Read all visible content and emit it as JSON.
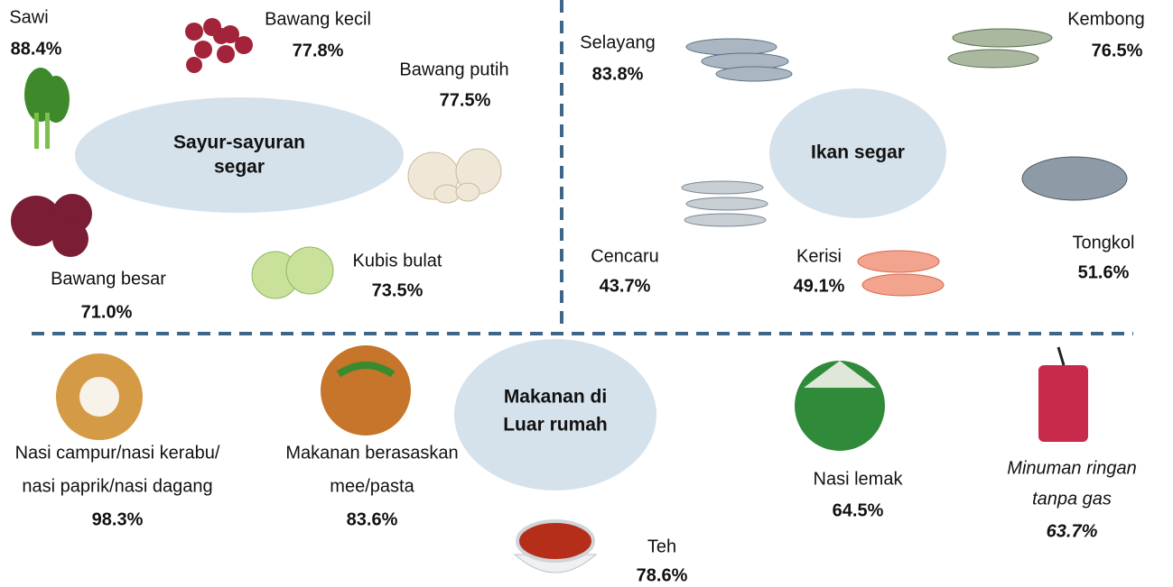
{
  "sections": [
    {
      "title": [
        "Sayur-sayuran",
        "segar"
      ],
      "items": [
        {
          "label": [
            "Sawi"
          ],
          "value": "88.4%"
        },
        {
          "label": [
            "Bawang kecil"
          ],
          "value": "77.8%"
        },
        {
          "label": [
            "Bawang putih"
          ],
          "value": "77.5%"
        },
        {
          "label": [
            "Bawang besar"
          ],
          "value": "71.0%"
        },
        {
          "label": [
            "Kubis bulat"
          ],
          "value": "73.5%"
        }
      ]
    },
    {
      "title": [
        "Ikan segar"
      ],
      "items": [
        {
          "label": [
            "Selayang"
          ],
          "value": "83.8%"
        },
        {
          "label": [
            "Kembong"
          ],
          "value": "76.5%"
        },
        {
          "label": [
            "Cencaru"
          ],
          "value": "43.7%"
        },
        {
          "label": [
            "Kerisi"
          ],
          "value": "49.1%"
        },
        {
          "label": [
            "Tongkol"
          ],
          "value": "51.6%"
        }
      ]
    },
    {
      "title": [
        "Makanan di",
        "Luar rumah"
      ],
      "items": [
        {
          "label": [
            "Nasi campur/nasi kerabu/",
            "nasi paprik/nasi dagang"
          ],
          "value": "98.3%"
        },
        {
          "label": [
            "Makanan berasaskan",
            "mee/pasta"
          ],
          "value": "83.6%"
        },
        {
          "label": [
            "Teh"
          ],
          "value": "78.6%"
        },
        {
          "label": [
            "Nasi lemak"
          ],
          "value": "64.5%"
        },
        {
          "label": [
            "Minuman ringan",
            "tanpa gas"
          ],
          "value": "63.7%"
        }
      ]
    }
  ]
}
